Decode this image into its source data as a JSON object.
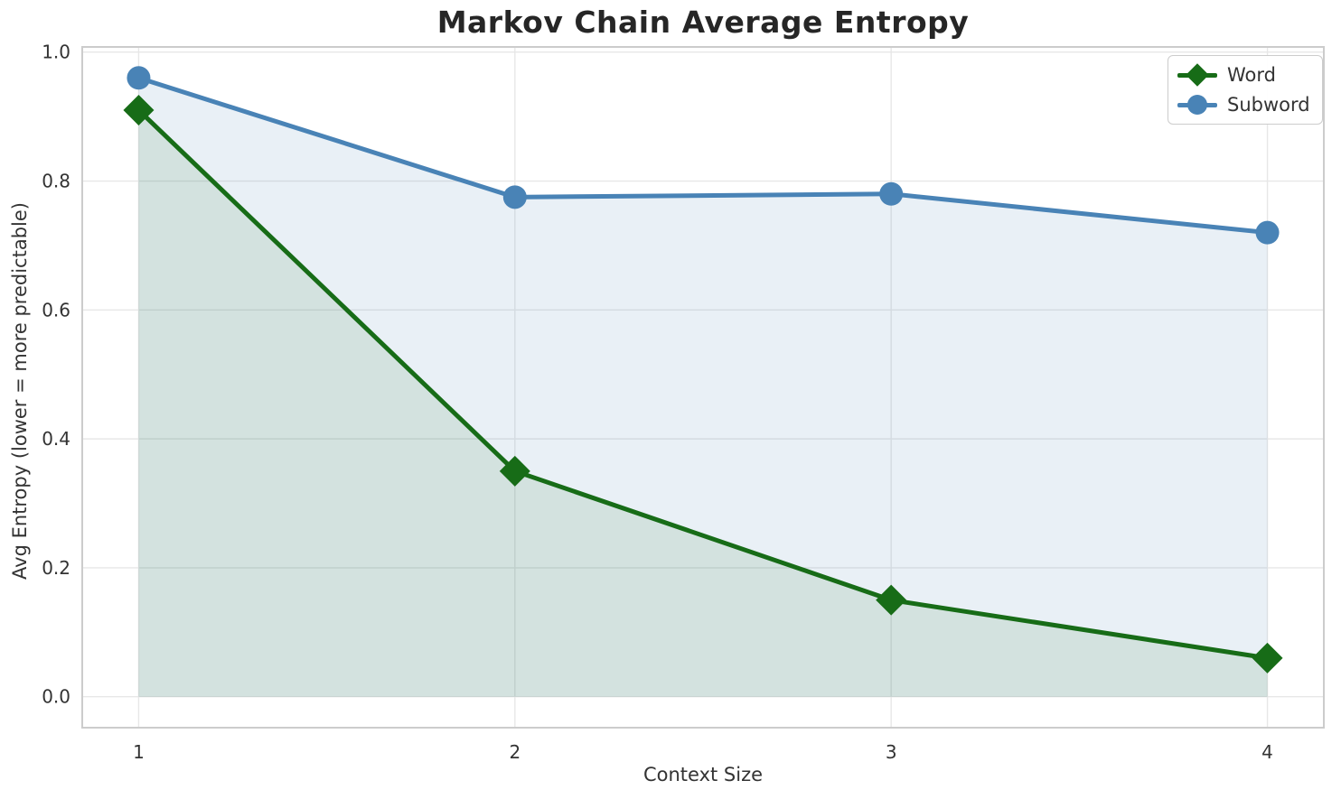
{
  "figure": {
    "background": "#ffffff",
    "text_color": "#333333",
    "title_color": "#262626",
    "grid_color": "#e7e7e7",
    "spine_color": "#cccccc"
  },
  "chart_data": {
    "type": "line",
    "title": "Markov Chain Average Entropy",
    "xlabel": "Context Size",
    "ylabel": "Avg Entropy (lower = more predictable)",
    "x": [
      1,
      2,
      3,
      4
    ],
    "xtick_labels": [
      "1",
      "2",
      "3",
      "4"
    ],
    "yticks": [
      0.0,
      0.2,
      0.4,
      0.6,
      0.8,
      1.0
    ],
    "ytick_labels": [
      "0.0",
      "0.2",
      "0.4",
      "0.6",
      "0.8",
      "1.0"
    ],
    "xlim": [
      0.85,
      4.15
    ],
    "ylim": [
      -0.048,
      1.008
    ],
    "grid": true,
    "legend_position": "upper right",
    "series": [
      {
        "name": "Word",
        "values": [
          0.91,
          0.35,
          0.15,
          0.06
        ],
        "color": "#176c17",
        "marker": "diamond",
        "area_fill": true,
        "fill_alpha": 0.1,
        "fill_baseline": 0.0
      },
      {
        "name": "Subword",
        "values": [
          0.96,
          0.775,
          0.78,
          0.72
        ],
        "color": "#4983b6",
        "marker": "circle",
        "area_fill": true,
        "fill_alpha": 0.12,
        "fill_baseline": 0.0
      }
    ]
  }
}
